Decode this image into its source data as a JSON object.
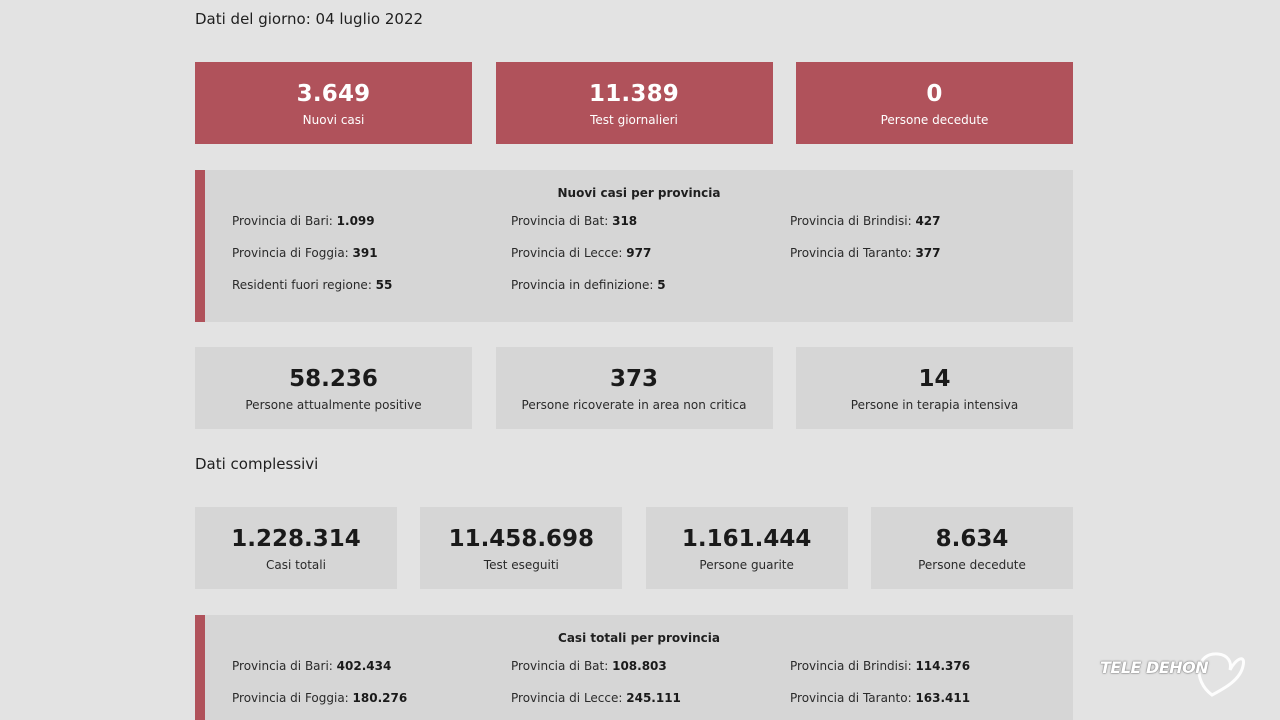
{
  "daily": {
    "title": "Dati del giorno: 04 luglio 2022",
    "cards": [
      {
        "value": "3.649",
        "label": "Nuovi casi"
      },
      {
        "value": "11.389",
        "label": "Test giornalieri"
      },
      {
        "value": "0",
        "label": "Persone decedute"
      }
    ],
    "provinces": {
      "title": "Nuovi casi per provincia",
      "items": [
        {
          "label": "Provincia di Bari: ",
          "value": "1.099"
        },
        {
          "label": "Provincia di Bat: ",
          "value": "318"
        },
        {
          "label": "Provincia di Brindisi: ",
          "value": "427"
        },
        {
          "label": "Provincia di Foggia: ",
          "value": "391"
        },
        {
          "label": "Provincia di Lecce: ",
          "value": "977"
        },
        {
          "label": "Provincia di Taranto: ",
          "value": "377"
        },
        {
          "label": "Residenti fuori regione: ",
          "value": "55"
        },
        {
          "label": "Provincia in definizione: ",
          "value": "5"
        }
      ]
    },
    "status_cards": [
      {
        "value": "58.236",
        "label": "Persone attualmente positive"
      },
      {
        "value": "373",
        "label": "Persone ricoverate in area non critica"
      },
      {
        "value": "14",
        "label": "Persone in terapia intensiva"
      }
    ]
  },
  "totals": {
    "title": "Dati complessivi",
    "cards": [
      {
        "value": "1.228.314",
        "label": "Casi totali"
      },
      {
        "value": "11.458.698",
        "label": "Test eseguiti"
      },
      {
        "value": "1.161.444",
        "label": "Persone guarite"
      },
      {
        "value": "8.634",
        "label": "Persone decedute"
      }
    ],
    "provinces": {
      "title": "Casi totali per provincia",
      "items": [
        {
          "label": "Provincia di Bari: ",
          "value": "402.434"
        },
        {
          "label": "Provincia di Bat: ",
          "value": "108.803"
        },
        {
          "label": "Provincia di Brindisi: ",
          "value": "114.376"
        },
        {
          "label": "Provincia di Foggia: ",
          "value": "180.276"
        },
        {
          "label": "Provincia di Lecce: ",
          "value": "245.111"
        },
        {
          "label": "Provincia di Taranto: ",
          "value": "163.411"
        }
      ]
    }
  },
  "watermark": {
    "text": "TELE DEHON",
    "icon": "heart-outline-icon"
  },
  "colors": {
    "accent": "#b0525b",
    "card_grey": "#d6d6d6",
    "background": "#e3e3e3"
  }
}
